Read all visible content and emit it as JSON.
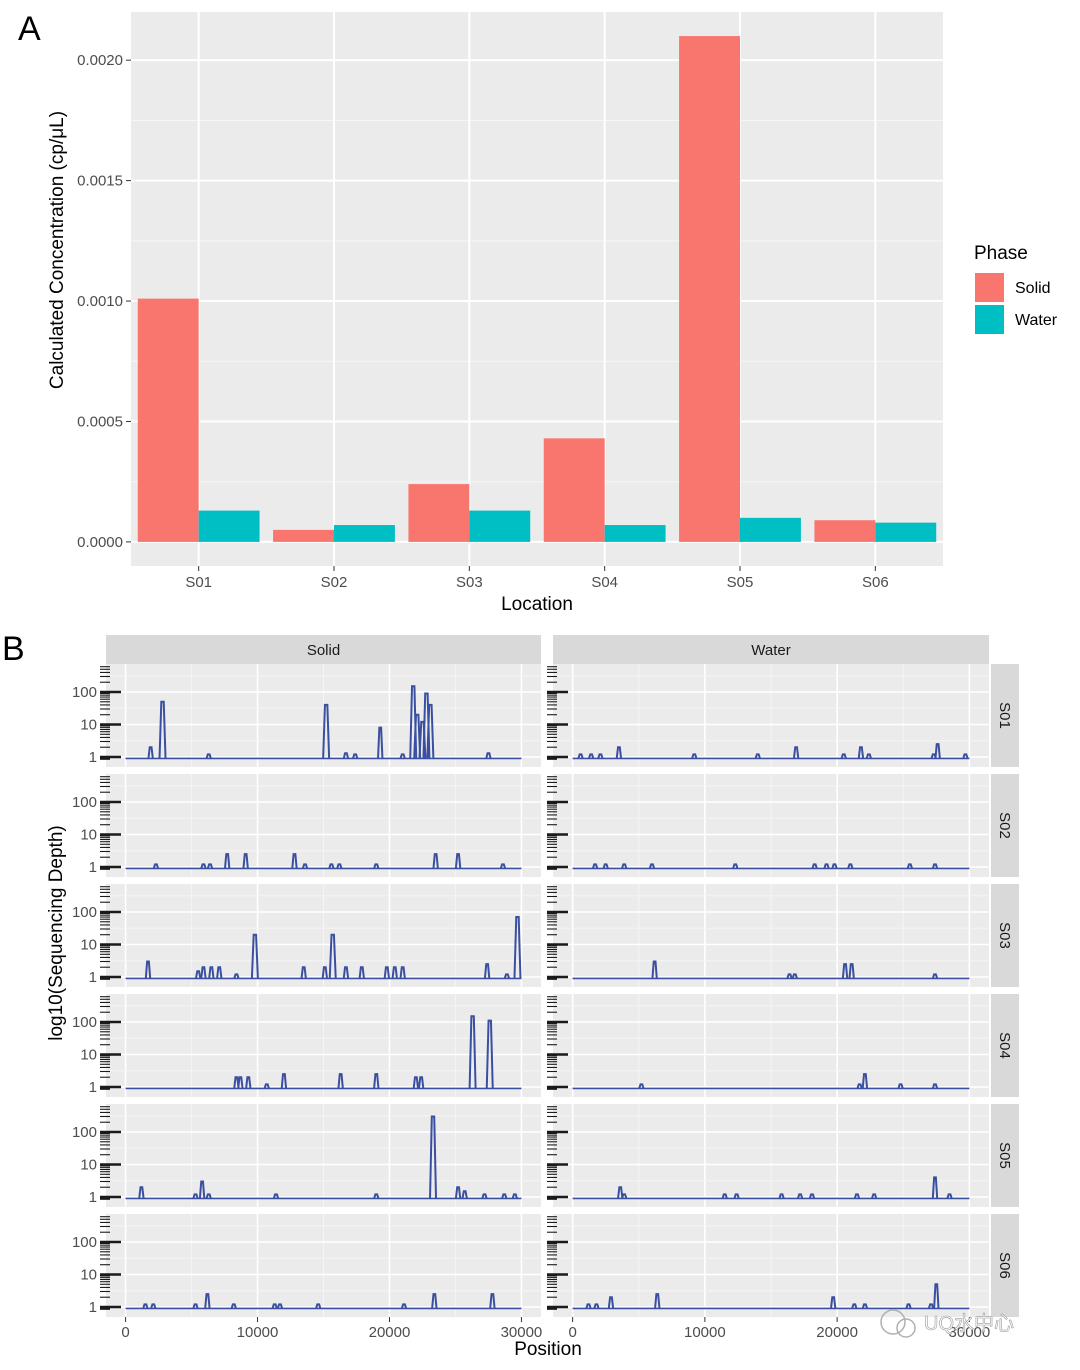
{
  "panel_a_label": "A",
  "panel_b_label": "B",
  "watermark_text": "UQ水中心",
  "chart_data": [
    {
      "type": "bar",
      "panel": "A",
      "categories": [
        "S01",
        "S02",
        "S03",
        "S04",
        "S05",
        "S06"
      ],
      "series": [
        {
          "name": "Solid",
          "color": "#F8766D",
          "values": [
            0.00101,
            5e-05,
            0.00024,
            0.00043,
            0.0021,
            9e-05
          ]
        },
        {
          "name": "Water",
          "color": "#00BFC4",
          "values": [
            0.00013,
            7e-05,
            0.00013,
            7e-05,
            0.0001,
            8e-05
          ]
        }
      ],
      "xlabel": "Location",
      "ylabel": "Calculated Concentration (cp/μL)",
      "ylim": [
        -0.0001,
        0.0022
      ],
      "yticks": [
        0.0,
        0.0005,
        0.001,
        0.0015,
        0.002
      ],
      "ytick_labels": [
        "0.0000",
        "0.0005",
        "0.0010",
        "0.0015",
        "0.0020"
      ],
      "legend_title": "Phase",
      "legend_position": "right",
      "grid": true
    },
    {
      "type": "line",
      "panel": "B",
      "facet_columns": [
        "Solid",
        "Water"
      ],
      "facet_rows": [
        "S01",
        "S02",
        "S03",
        "S04",
        "S05",
        "S06"
      ],
      "xlabel": "Position",
      "ylabel": "log10(Sequencing Depth)",
      "xlim": [
        0,
        30000
      ],
      "xticks": [
        0,
        10000,
        20000,
        30000
      ],
      "xtick_labels": [
        "0",
        "10000",
        "20000",
        "30000"
      ],
      "yscale": "log10",
      "yticks": [
        1,
        10,
        100
      ],
      "ytick_labels": [
        "1",
        "10",
        "100"
      ],
      "line_color": "#3B4FA0",
      "grid": true,
      "peaks": {
        "Solid": {
          "S01": [
            [
              1900,
              2
            ],
            [
              2800,
              50
            ],
            [
              6300,
              1.2
            ],
            [
              15200,
              40
            ],
            [
              16700,
              1.3
            ],
            [
              17400,
              1.2
            ],
            [
              19300,
              8
            ],
            [
              21000,
              1.2
            ],
            [
              21800,
              150
            ],
            [
              22100,
              20
            ],
            [
              22500,
              12
            ],
            [
              22800,
              90
            ],
            [
              23100,
              40
            ],
            [
              27500,
              1.3
            ]
          ],
          "S02": [
            [
              2300,
              1.2
            ],
            [
              5900,
              1.2
            ],
            [
              6400,
              1.2
            ],
            [
              7700,
              2.5
            ],
            [
              9100,
              2.5
            ],
            [
              12800,
              2.5
            ],
            [
              13600,
              1.2
            ],
            [
              15600,
              1.2
            ],
            [
              16200,
              1.2
            ],
            [
              19000,
              1.2
            ],
            [
              23500,
              2.5
            ],
            [
              25200,
              2.5
            ],
            [
              28600,
              1.2
            ]
          ],
          "S03": [
            [
              1700,
              3
            ],
            [
              5500,
              1.5
            ],
            [
              5900,
              2
            ],
            [
              6500,
              2
            ],
            [
              7100,
              2
            ],
            [
              8400,
              1.2
            ],
            [
              9800,
              20
            ],
            [
              13500,
              2
            ],
            [
              15100,
              2
            ],
            [
              15700,
              20
            ],
            [
              16700,
              2
            ],
            [
              17900,
              2
            ],
            [
              19800,
              2
            ],
            [
              20400,
              2
            ],
            [
              21000,
              2
            ],
            [
              27400,
              2.5
            ],
            [
              28900,
              1.2
            ],
            [
              29700,
              70
            ]
          ],
          "S04": [
            [
              8400,
              2
            ],
            [
              8700,
              2
            ],
            [
              9300,
              2
            ],
            [
              10700,
              1.2
            ],
            [
              12000,
              2.5
            ],
            [
              16300,
              2.5
            ],
            [
              19000,
              2.5
            ],
            [
              22000,
              2
            ],
            [
              22400,
              2
            ],
            [
              26300,
              150
            ],
            [
              27600,
              110
            ]
          ],
          "S05": [
            [
              1200,
              2
            ],
            [
              5300,
              1.2
            ],
            [
              5800,
              3
            ],
            [
              6300,
              1.2
            ],
            [
              11400,
              1.2
            ],
            [
              19000,
              1.2
            ],
            [
              23300,
              300
            ],
            [
              25200,
              2
            ],
            [
              25700,
              1.5
            ],
            [
              27200,
              1.2
            ],
            [
              28700,
              1.2
            ],
            [
              29500,
              1.2
            ]
          ],
          "S06": [
            [
              1500,
              1.2
            ],
            [
              2100,
              1.2
            ],
            [
              5300,
              1.2
            ],
            [
              6200,
              2.5
            ],
            [
              8200,
              1.2
            ],
            [
              11300,
              1.2
            ],
            [
              11700,
              1.2
            ],
            [
              14600,
              1.2
            ],
            [
              21100,
              1.2
            ],
            [
              23400,
              2.5
            ],
            [
              27800,
              2.5
            ]
          ]
        },
        "Water": {
          "S01": [
            [
              600,
              1.2
            ],
            [
              1400,
              1.2
            ],
            [
              2100,
              1.2
            ],
            [
              3500,
              2
            ],
            [
              9200,
              1.2
            ],
            [
              14000,
              1.2
            ],
            [
              16900,
              2
            ],
            [
              20500,
              1.2
            ],
            [
              21800,
              2
            ],
            [
              22400,
              1.2
            ],
            [
              27300,
              1.2
            ],
            [
              27600,
              2.5
            ],
            [
              29700,
              1.2
            ]
          ],
          "S02": [
            [
              1700,
              1.2
            ],
            [
              2500,
              1.2
            ],
            [
              3900,
              1.2
            ],
            [
              6000,
              1.2
            ],
            [
              12300,
              1.2
            ],
            [
              18300,
              1.2
            ],
            [
              19200,
              1.2
            ],
            [
              19800,
              1.2
            ],
            [
              21000,
              1.2
            ],
            [
              25500,
              1.2
            ],
            [
              27400,
              1.2
            ]
          ],
          "S03": [
            [
              6200,
              3
            ],
            [
              16400,
              1.2
            ],
            [
              16800,
              1.2
            ],
            [
              20600,
              2.5
            ],
            [
              21100,
              2.5
            ],
            [
              27400,
              1.2
            ]
          ],
          "S04": [
            [
              5200,
              1.2
            ],
            [
              21700,
              1.2
            ],
            [
              22100,
              2.5
            ],
            [
              24800,
              1.2
            ],
            [
              27400,
              1.2
            ]
          ],
          "S05": [
            [
              3600,
              2
            ],
            [
              3900,
              1.2
            ],
            [
              11500,
              1.2
            ],
            [
              12400,
              1.2
            ],
            [
              15800,
              1.2
            ],
            [
              17200,
              1.2
            ],
            [
              18100,
              1.2
            ],
            [
              21500,
              1.2
            ],
            [
              22800,
              1.2
            ],
            [
              27400,
              4
            ],
            [
              28500,
              1.2
            ]
          ],
          "S06": [
            [
              1200,
              1.2
            ],
            [
              1800,
              1.2
            ],
            [
              2900,
              2
            ],
            [
              6400,
              2.5
            ],
            [
              19700,
              2
            ],
            [
              21300,
              1.2
            ],
            [
              22100,
              1.2
            ],
            [
              25400,
              1.2
            ],
            [
              27100,
              1.2
            ],
            [
              27500,
              5
            ]
          ]
        }
      }
    }
  ]
}
